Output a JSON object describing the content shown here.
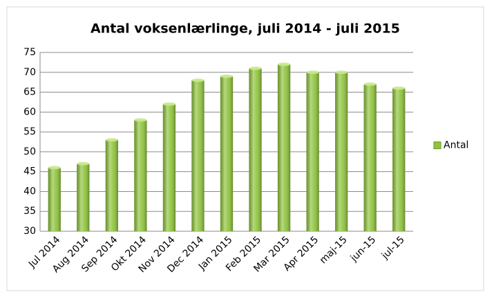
{
  "chart_data": {
    "type": "bar",
    "title": "Antal voksenlærlinge, juli 2014 - juli 2015",
    "categories": [
      "Jul 2014",
      "Aug 2014",
      "Sep 2014",
      "Okt 2014",
      "Nov 2014",
      "Dec 2014",
      "Jan 2015",
      "Feb 2015",
      "Mar 2015",
      "Apr 2015",
      "maj-15",
      "jun-15",
      "jul-15"
    ],
    "series": [
      {
        "name": "Antal",
        "color": "#8fc43c",
        "values": [
          46,
          47,
          53,
          58,
          62,
          68,
          69,
          71,
          72,
          70,
          70,
          67,
          66
        ]
      }
    ],
    "ylim": [
      30,
      75
    ],
    "yticks": [
      30,
      35,
      40,
      45,
      50,
      55,
      60,
      65,
      70,
      75
    ],
    "grid": true,
    "legend": "right"
  }
}
